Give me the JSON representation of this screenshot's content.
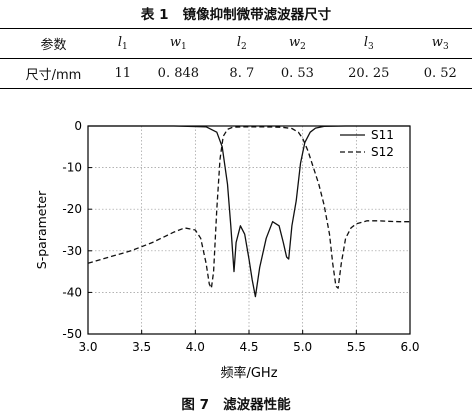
{
  "table": {
    "caption_num": "表 1",
    "caption_text": "镜像抑制微带滤波器尺寸",
    "header": {
      "first": "参数",
      "cols": [
        {
          "sym": "l",
          "sub": "1"
        },
        {
          "sym": "w",
          "sub": "1"
        },
        {
          "sym": "l",
          "sub": "2"
        },
        {
          "sym": "w",
          "sub": "2"
        },
        {
          "sym": "l",
          "sub": "3"
        },
        {
          "sym": "w",
          "sub": "3"
        }
      ]
    },
    "row": {
      "first": "尺寸/mm",
      "values": [
        "11",
        "0. 848",
        "8. 7",
        "0. 53",
        "20. 25",
        "0. 52"
      ]
    }
  },
  "figure": {
    "caption_num": "图 7",
    "caption_text": "滤波器性能"
  },
  "chart_data": {
    "type": "line",
    "xlabel": "频率/GHz",
    "ylabel": "S-parameter",
    "xlim": [
      3.0,
      6.0
    ],
    "ylim": [
      -50,
      0
    ],
    "xticks": [
      "3.0",
      "3.5",
      "4.0",
      "4.5",
      "5.0",
      "5.5",
      "6.0"
    ],
    "yticks": [
      "0",
      "-10",
      "-20",
      "-30",
      "-40",
      "-50"
    ],
    "grid": true,
    "legend_position": "top-right",
    "series": [
      {
        "name": "S11",
        "style": "solid",
        "color": "#111111",
        "x": [
          3.0,
          3.8,
          4.1,
          4.2,
          4.25,
          4.3,
          4.33,
          4.36,
          4.38,
          4.42,
          4.46,
          4.5,
          4.53,
          4.56,
          4.6,
          4.66,
          4.72,
          4.78,
          4.82,
          4.85,
          4.87,
          4.9,
          4.94,
          4.98,
          5.02,
          5.07,
          5.12,
          5.2,
          5.4,
          6.0
        ],
        "y": [
          0,
          0,
          -0.2,
          -1.5,
          -5,
          -14,
          -24,
          -35,
          -28,
          -24,
          -26,
          -32,
          -37,
          -41,
          -34,
          -27,
          -23,
          -24,
          -28,
          -31.5,
          -32,
          -24,
          -18,
          -9,
          -4,
          -1.5,
          -0.5,
          -0.1,
          0,
          0
        ]
      },
      {
        "name": "S12",
        "style": "dashed",
        "color": "#111111",
        "x": [
          3.0,
          3.2,
          3.4,
          3.6,
          3.8,
          3.9,
          4.0,
          4.05,
          4.1,
          4.13,
          4.15,
          4.17,
          4.2,
          4.23,
          4.26,
          4.3,
          4.35,
          4.45,
          4.6,
          4.8,
          4.9,
          4.96,
          5.0,
          5.05,
          5.1,
          5.15,
          5.2,
          5.25,
          5.28,
          5.31,
          5.33,
          5.36,
          5.4,
          5.45,
          5.5,
          5.6,
          5.7,
          5.8,
          5.9,
          6.0
        ],
        "y": [
          -33,
          -31.5,
          -30,
          -28,
          -25.5,
          -24.5,
          -25,
          -27,
          -33,
          -38,
          -39,
          -35,
          -20,
          -8,
          -2.5,
          -0.8,
          -0.3,
          -0.2,
          -0.2,
          -0.3,
          -0.6,
          -1.5,
          -3,
          -6,
          -10,
          -14,
          -19,
          -26,
          -33,
          -38.5,
          -39,
          -33,
          -27,
          -24.5,
          -23.5,
          -22.8,
          -22.8,
          -22.9,
          -23,
          -23
        ]
      }
    ]
  }
}
